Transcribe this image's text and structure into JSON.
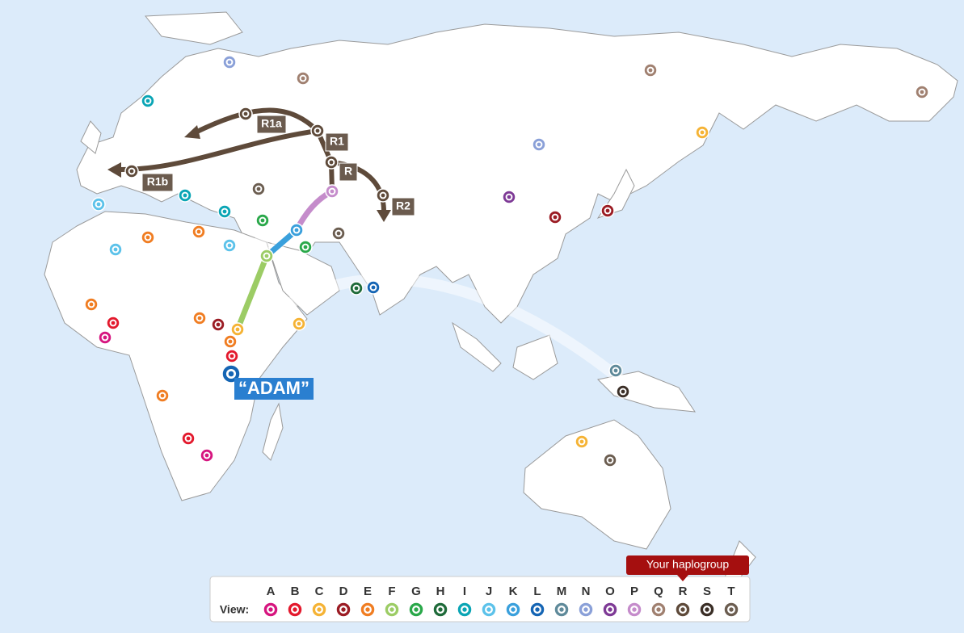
{
  "map": {
    "migration_labels": [
      "R1a",
      "R1",
      "R",
      "R1b",
      "R2"
    ],
    "origin_label": "“ADAM”"
  },
  "legend": {
    "view_label": "View:",
    "your_haplogroup": "Your haplogroup",
    "haplogroups": [
      {
        "letter": "A",
        "color": "#d6157f"
      },
      {
        "letter": "B",
        "color": "#e3192d"
      },
      {
        "letter": "C",
        "color": "#f5b335"
      },
      {
        "letter": "D",
        "color": "#9b1c24"
      },
      {
        "letter": "E",
        "color": "#f07d22"
      },
      {
        "letter": "F",
        "color": "#9ccc65"
      },
      {
        "letter": "G",
        "color": "#2aa84a"
      },
      {
        "letter": "H",
        "color": "#1f6b3a"
      },
      {
        "letter": "I",
        "color": "#0aa5b5"
      },
      {
        "letter": "J",
        "color": "#5cc2ea"
      },
      {
        "letter": "K",
        "color": "#3aa0dc"
      },
      {
        "letter": "L",
        "color": "#1565b4"
      },
      {
        "letter": "M",
        "color": "#5f8a9a"
      },
      {
        "letter": "N",
        "color": "#8aa0d8"
      },
      {
        "letter": "O",
        "color": "#7e3a96"
      },
      {
        "letter": "P",
        "color": "#c58ccb"
      },
      {
        "letter": "Q",
        "color": "#a08070"
      },
      {
        "letter": "R",
        "color": "#5e4a3a"
      },
      {
        "letter": "S",
        "color": "#3a2e26"
      },
      {
        "letter": "T",
        "color": "#6b5d50"
      }
    ]
  }
}
